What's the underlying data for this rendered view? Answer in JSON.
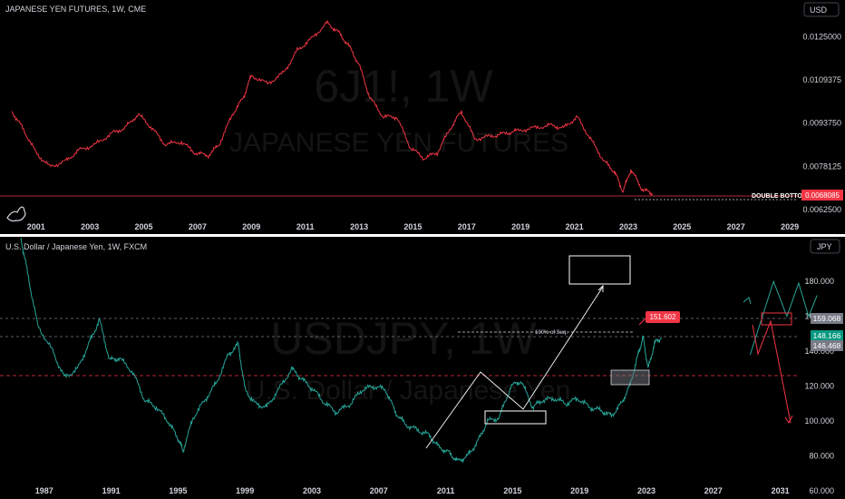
{
  "top_panel": {
    "title": "JAPANESE YEN FUTURES, 1W, CME",
    "currency_button": "USD",
    "watermark_symbol": "6J1!, 1W",
    "watermark_name": "JAPANESE YEN FUTURES",
    "double_bottom_label": "DOUBLE BOTTOM",
    "price_tag": "0.0068085",
    "colors": {
      "series": "#f23645",
      "tag_bg": "#f23645"
    }
  },
  "bottom_panel": {
    "title": "U.S. Dollar / Japanese Yen, 1W, FXCM",
    "currency_button": "JPY",
    "watermark_symbol": "USDJPY, 1W",
    "watermark_name": "U.S. Dollar / Japanese Yen",
    "fib_label": "100% of Seq.",
    "target_label": "151.602",
    "price_tags": [
      {
        "text": "159.068",
        "bg": "#787b86"
      },
      {
        "text": "148.166",
        "bg": "#089981"
      },
      {
        "text": "146.468",
        "bg": "#787b86"
      }
    ],
    "colors": {
      "series": "#26a69a",
      "target_bg": "#f23645",
      "line": "#f23645"
    }
  },
  "chart_data": [
    {
      "type": "line",
      "title": "JAPANESE YEN FUTURES, 1W, CME",
      "x_ticks": [
        "2001",
        "2003",
        "2005",
        "2007",
        "2009",
        "2011",
        "2013",
        "2015",
        "2017",
        "2019",
        "2021",
        "2023",
        "2025",
        "2027",
        "2029"
      ],
      "y_ticks": [
        "0.0125000",
        "0.0109375",
        "0.0093750",
        "0.0078125",
        "0.0062500"
      ],
      "ylim": [
        0.00595,
        0.0137
      ],
      "xlim": [
        2000.3,
        2029.3
      ],
      "series": [
        {
          "x": [
            2000.1,
            2000.5,
            2001.0,
            2001.5,
            2002.1,
            2002.6,
            2003.2,
            2003.8,
            2004.3,
            2004.8,
            2005.3,
            2005.8,
            2006.4,
            2006.9,
            2007.4,
            2007.8,
            2008.3,
            2008.7,
            2009.0,
            2009.6,
            2010.2,
            2010.7,
            2011.2,
            2011.8,
            2012.2,
            2012.6,
            2013.0,
            2013.4,
            2013.9,
            2014.4,
            2014.9,
            2015.4,
            2015.9,
            2016.4,
            2016.8,
            2017.3,
            2017.9,
            2018.4,
            2018.9,
            2019.5,
            2020.1,
            2020.6,
            2021.1,
            2021.6,
            2022.1,
            2022.5,
            2022.8,
            2023.1,
            2023.5,
            2023.9
          ],
          "values": [
            0.0098,
            0.0092,
            0.0083,
            0.0078,
            0.008,
            0.0084,
            0.0086,
            0.009,
            0.0092,
            0.0097,
            0.0092,
            0.0086,
            0.0087,
            0.0083,
            0.0082,
            0.0086,
            0.0097,
            0.0103,
            0.0111,
            0.0108,
            0.0112,
            0.012,
            0.0124,
            0.013,
            0.0127,
            0.0122,
            0.0115,
            0.0103,
            0.0096,
            0.0096,
            0.0085,
            0.0081,
            0.0083,
            0.0092,
            0.0098,
            0.0088,
            0.0089,
            0.009,
            0.0091,
            0.0092,
            0.0093,
            0.0092,
            0.0096,
            0.0088,
            0.008,
            0.0076,
            0.0069,
            0.0077,
            0.007,
            0.00681
          ]
        }
      ],
      "annotations": [
        "DOUBLE BOTTOM",
        "0.0068085"
      ]
    },
    {
      "type": "line",
      "title": "U.S. Dollar / Japanese Yen, 1W, FXCM",
      "x_ticks": [
        "1987",
        "1991",
        "1995",
        "1999",
        "2003",
        "2007",
        "2011",
        "2015",
        "2019",
        "2023",
        "2027",
        "2031"
      ],
      "y_ticks": [
        "180.000",
        "160.000",
        "140.000",
        "120.000",
        "100.000",
        "80.000",
        "60.000"
      ],
      "ylim": [
        58,
        204
      ],
      "xlim": [
        1985.6,
        2033.3
      ],
      "series": [
        {
          "x": [
            1985.6,
            1986.0,
            1986.6,
            1987.5,
            1988.2,
            1989.0,
            1989.7,
            1990.3,
            1990.9,
            1991.5,
            1992.3,
            1993.0,
            1993.7,
            1994.4,
            1995.0,
            1995.3,
            1995.9,
            1996.6,
            1997.3,
            1998.0,
            1998.6,
            1999.0,
            1999.6,
            2000.3,
            2001.0,
            2001.8,
            2002.4,
            2003.1,
            2003.8,
            2004.5,
            2005.3,
            2006.0,
            2006.7,
            2007.4,
            2008.0,
            2008.6,
            2009.3,
            2010.0,
            2010.6,
            2011.2,
            2011.7,
            2012.3,
            2012.9,
            2013.5,
            2014.2,
            2014.9,
            2015.5,
            2016.2,
            2016.8,
            2017.5,
            2018.2,
            2018.9,
            2019.6,
            2020.3,
            2020.9,
            2021.5,
            2022.0,
            2022.5,
            2022.8,
            2023.1,
            2023.5,
            2023.9
          ],
          "values": [
            205,
            185,
            155,
            140,
            125,
            130,
            145,
            158,
            135,
            136,
            128,
            112,
            108,
            100,
            90,
            83,
            102,
            112,
            122,
            138,
            144,
            118,
            110,
            108,
            118,
            130,
            124,
            118,
            110,
            105,
            110,
            118,
            120,
            118,
            105,
            98,
            95,
            92,
            85,
            82,
            77,
            80,
            88,
            100,
            102,
            120,
            123,
            108,
            112,
            113,
            110,
            113,
            108,
            106,
            103,
            110,
            120,
            138,
            148,
            130,
            145,
            148
          ]
        },
        {
          "name": "projection",
          "x": [
            2029.2,
            2030.6,
            2031.4,
            2032.1,
            2032.7,
            2033.2
          ],
          "values": [
            138,
            180,
            160,
            179,
            160,
            172
          ]
        }
      ],
      "annotations": [
        "100% of Seq.",
        "151.602",
        "159.068",
        "148.166",
        "146.468"
      ]
    }
  ]
}
